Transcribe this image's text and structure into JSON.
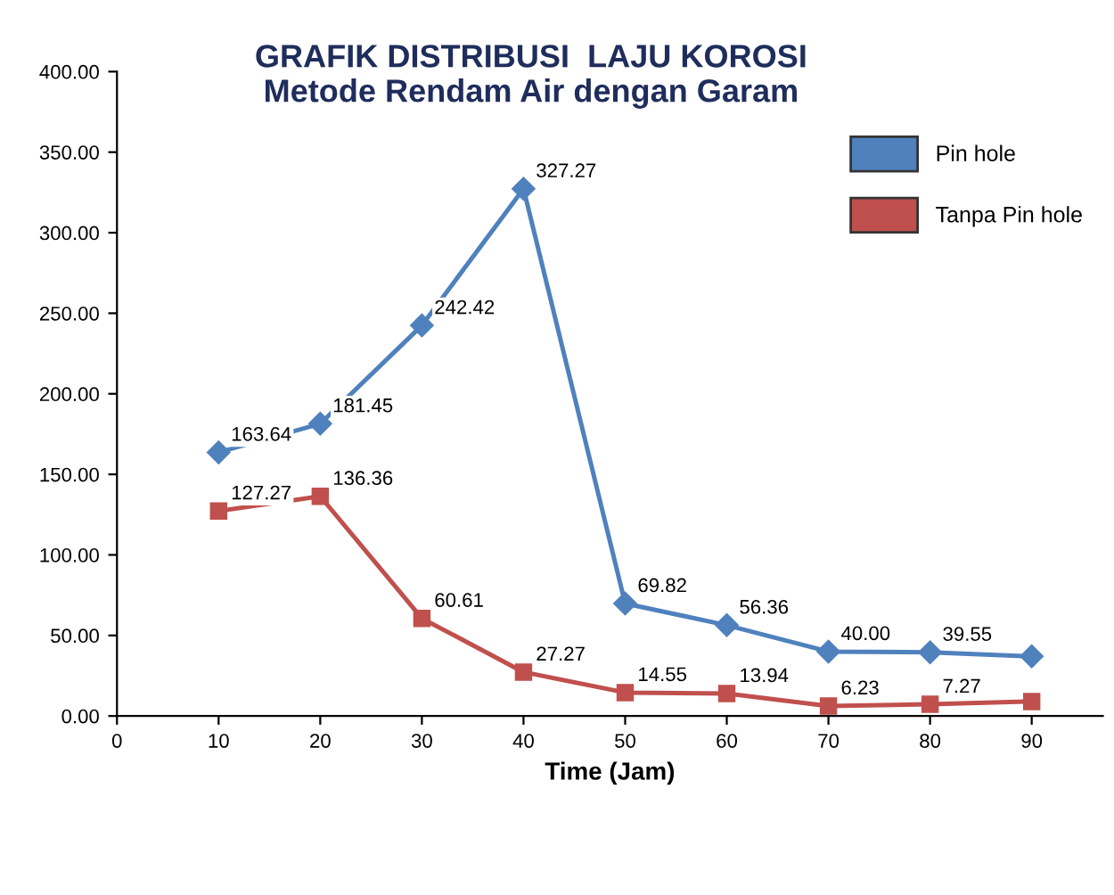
{
  "chart_data": {
    "type": "line",
    "title": "GRAFIK DISTRIBUSI  LAJU KOROSI\nMetode Rendam Air dengan Garam",
    "xlabel": "Time (Jam)",
    "x": [
      10,
      20,
      30,
      40,
      50,
      60,
      70,
      80,
      90
    ],
    "series": [
      {
        "name": "Pin hole",
        "color": "#4f81bd",
        "marker": "diamond",
        "values": [
          163.64,
          181.45,
          242.42,
          327.27,
          69.82,
          56.36,
          40.0,
          39.55,
          37
        ],
        "value_labels": [
          "163.64",
          "181.45",
          "242.42",
          "327.27",
          "69.82",
          "56.36",
          "40.00",
          "39.55",
          null
        ]
      },
      {
        "name": "Tanpa Pin hole",
        "color": "#c0504d",
        "marker": "square",
        "values": [
          127.27,
          136.36,
          60.61,
          27.27,
          14.55,
          13.94,
          6.23,
          7.27,
          9
        ],
        "value_labels": [
          "127.27",
          "136.36",
          "60.61",
          "27.27",
          "14.55",
          "13.94",
          "6.23",
          "7.27",
          null
        ]
      }
    ],
    "xlim": [
      0,
      97
    ],
    "xticks": [
      0,
      10,
      20,
      30,
      40,
      50,
      60,
      70,
      80,
      90
    ],
    "ylim": [
      0,
      400
    ],
    "yticks": [
      {
        "value": 0,
        "label": "0.00"
      },
      {
        "value": 50,
        "label": "50.00"
      },
      {
        "value": 100,
        "label": "100.00"
      },
      {
        "value": 150,
        "label": "150.00"
      },
      {
        "value": 200,
        "label": "200.00"
      },
      {
        "value": 250,
        "label": "250.00"
      },
      {
        "value": 300,
        "label": "300.00"
      },
      {
        "value": 350,
        "label": "350.00"
      },
      {
        "value": 400,
        "label": "400.00"
      }
    ],
    "grid": false,
    "legend": "top right"
  }
}
